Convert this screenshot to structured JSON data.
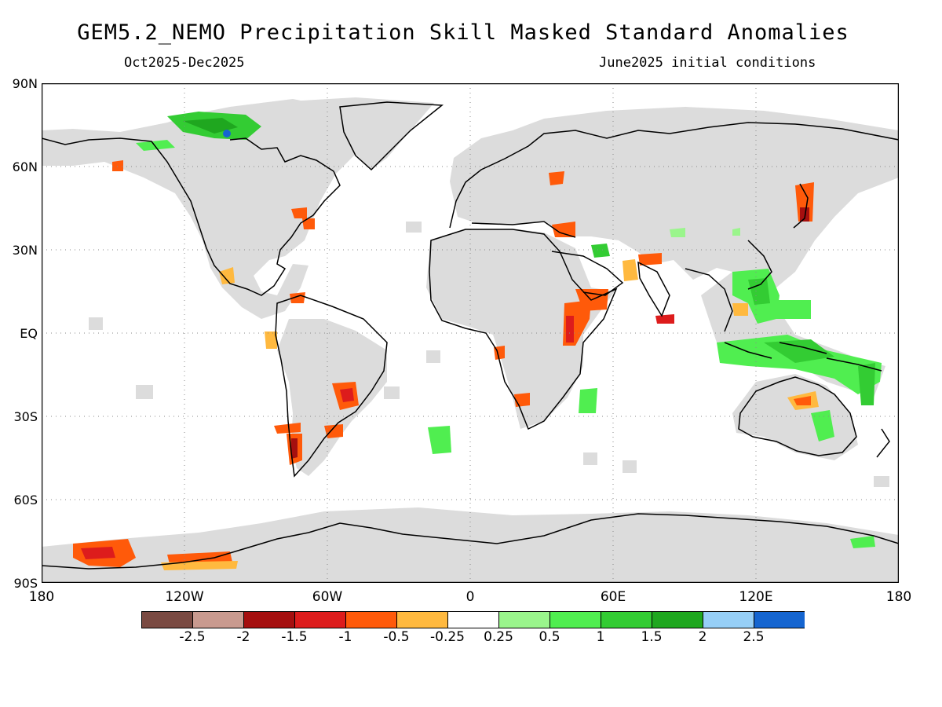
{
  "title": "GEM5.2_NEMO Precipitation Skill Masked Standard Anomalies",
  "subtitle_left": "Oct2025-Dec2025",
  "subtitle_right": "June2025 initial conditions",
  "lat_labels": [
    "90N",
    "60N",
    "30N",
    "EQ",
    "30S",
    "60S",
    "90S"
  ],
  "lon_labels": [
    "180",
    "120W",
    "60W",
    "0",
    "60E",
    "120E",
    "180"
  ],
  "legend": {
    "colors": [
      "#7a4a42",
      "#c99a8f",
      "#a50f0f",
      "#dd1c1c",
      "#ff5a0a",
      "#ffb93f",
      "#ffffff",
      "#9af58c",
      "#50ee50",
      "#33cc33",
      "#1fa71f",
      "#96cff7",
      "#1565d0"
    ],
    "labels": [
      "-2.5",
      "-2",
      "-1.5",
      "-1",
      "-0.5",
      "-0.25",
      "0.25",
      "0.5",
      "1",
      "1.5",
      "2",
      "2.5"
    ]
  },
  "colors": {
    "skill_mask_gray": "#dcdcdc",
    "coastline": "#000000",
    "grid": "#888888"
  }
}
